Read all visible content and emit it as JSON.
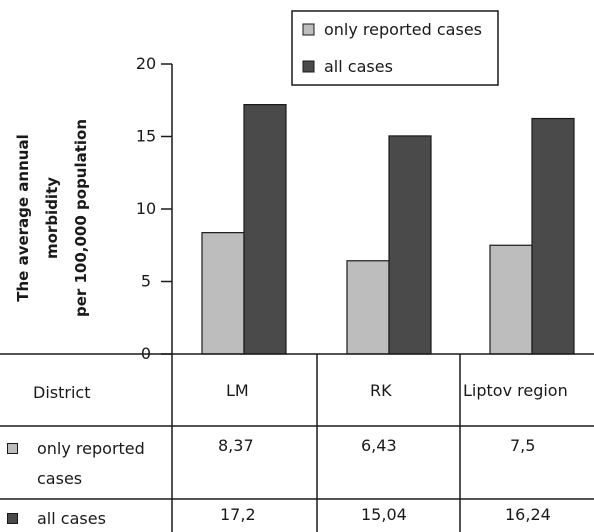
{
  "chart_data": {
    "type": "bar",
    "ylabel": "The average annual morbidity per 100,000 population",
    "ylabel_lines": [
      "The average annual",
      "morbidity",
      "per 100,000 population"
    ],
    "ylim": [
      0,
      20
    ],
    "yticks": [
      0,
      5,
      10,
      15,
      20
    ],
    "categories": [
      "LM",
      "RK",
      "Liptov region"
    ],
    "series": [
      {
        "name": "only reported cases",
        "values": [
          8.37,
          6.43,
          7.5
        ],
        "labels": [
          "8,37",
          "6,43",
          "7,5"
        ],
        "color": "#bdbdbd"
      },
      {
        "name": "all cases",
        "values": [
          17.2,
          15.04,
          16.24
        ],
        "labels": [
          "17,2",
          "15,04",
          "16,24"
        ],
        "color": "#4a4a4a"
      }
    ],
    "legend": "top-right",
    "grid": false
  },
  "table": {
    "header_label": "District",
    "row1_label": [
      "only reported",
      "cases"
    ],
    "row2_label": "all cases"
  }
}
